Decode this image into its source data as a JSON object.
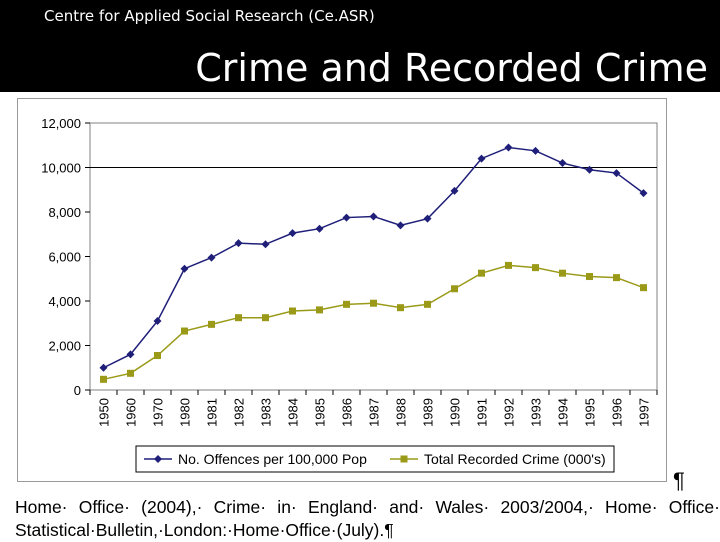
{
  "header": {
    "organization": "Centre for Applied Social Research (Ce.ASR)",
    "slide_title": "Crime and Recorded Crime"
  },
  "citation": {
    "text": "Home· Office· (2004),· Crime· in· England· and· Wales· 2003/2004,· Home· Office· Statistical·Bulletin,·London:·Home·Office·(July).¶",
    "pilcrow": "¶"
  },
  "chart_data": {
    "type": "line",
    "categories": [
      "1950",
      "1960",
      "1970",
      "1980",
      "1981",
      "1982",
      "1983",
      "1984",
      "1985",
      "1986",
      "1987",
      "1988",
      "1989",
      "1990",
      "1991",
      "1992",
      "1993",
      "1994",
      "1995",
      "1996",
      "1997"
    ],
    "series": [
      {
        "name": "No. Offences per 100,000 Pop",
        "color": "#1f1f7a",
        "marker": "diamond",
        "values": [
          1000,
          1600,
          3100,
          5450,
          5950,
          6600,
          6550,
          7050,
          7250,
          7750,
          7800,
          7400,
          7700,
          8950,
          10400,
          10900,
          10750,
          10200,
          9900,
          9750,
          8850
        ]
      },
      {
        "name": "Total Recorded Crime (000's)",
        "color": "#9a9a18",
        "marker": "square",
        "values": [
          480,
          750,
          1550,
          2650,
          2950,
          3250,
          3250,
          3550,
          3600,
          3850,
          3900,
          3700,
          3850,
          4550,
          5250,
          5600,
          5500,
          5250,
          5100,
          5050,
          4600
        ]
      }
    ],
    "yticks": [
      "0",
      "2,000",
      "4,000",
      "6,000",
      "8,000",
      "10,000",
      "12,000"
    ],
    "ylim": [
      0,
      12000
    ],
    "reference_line": 10000,
    "grid": false,
    "legend": "bottom"
  }
}
